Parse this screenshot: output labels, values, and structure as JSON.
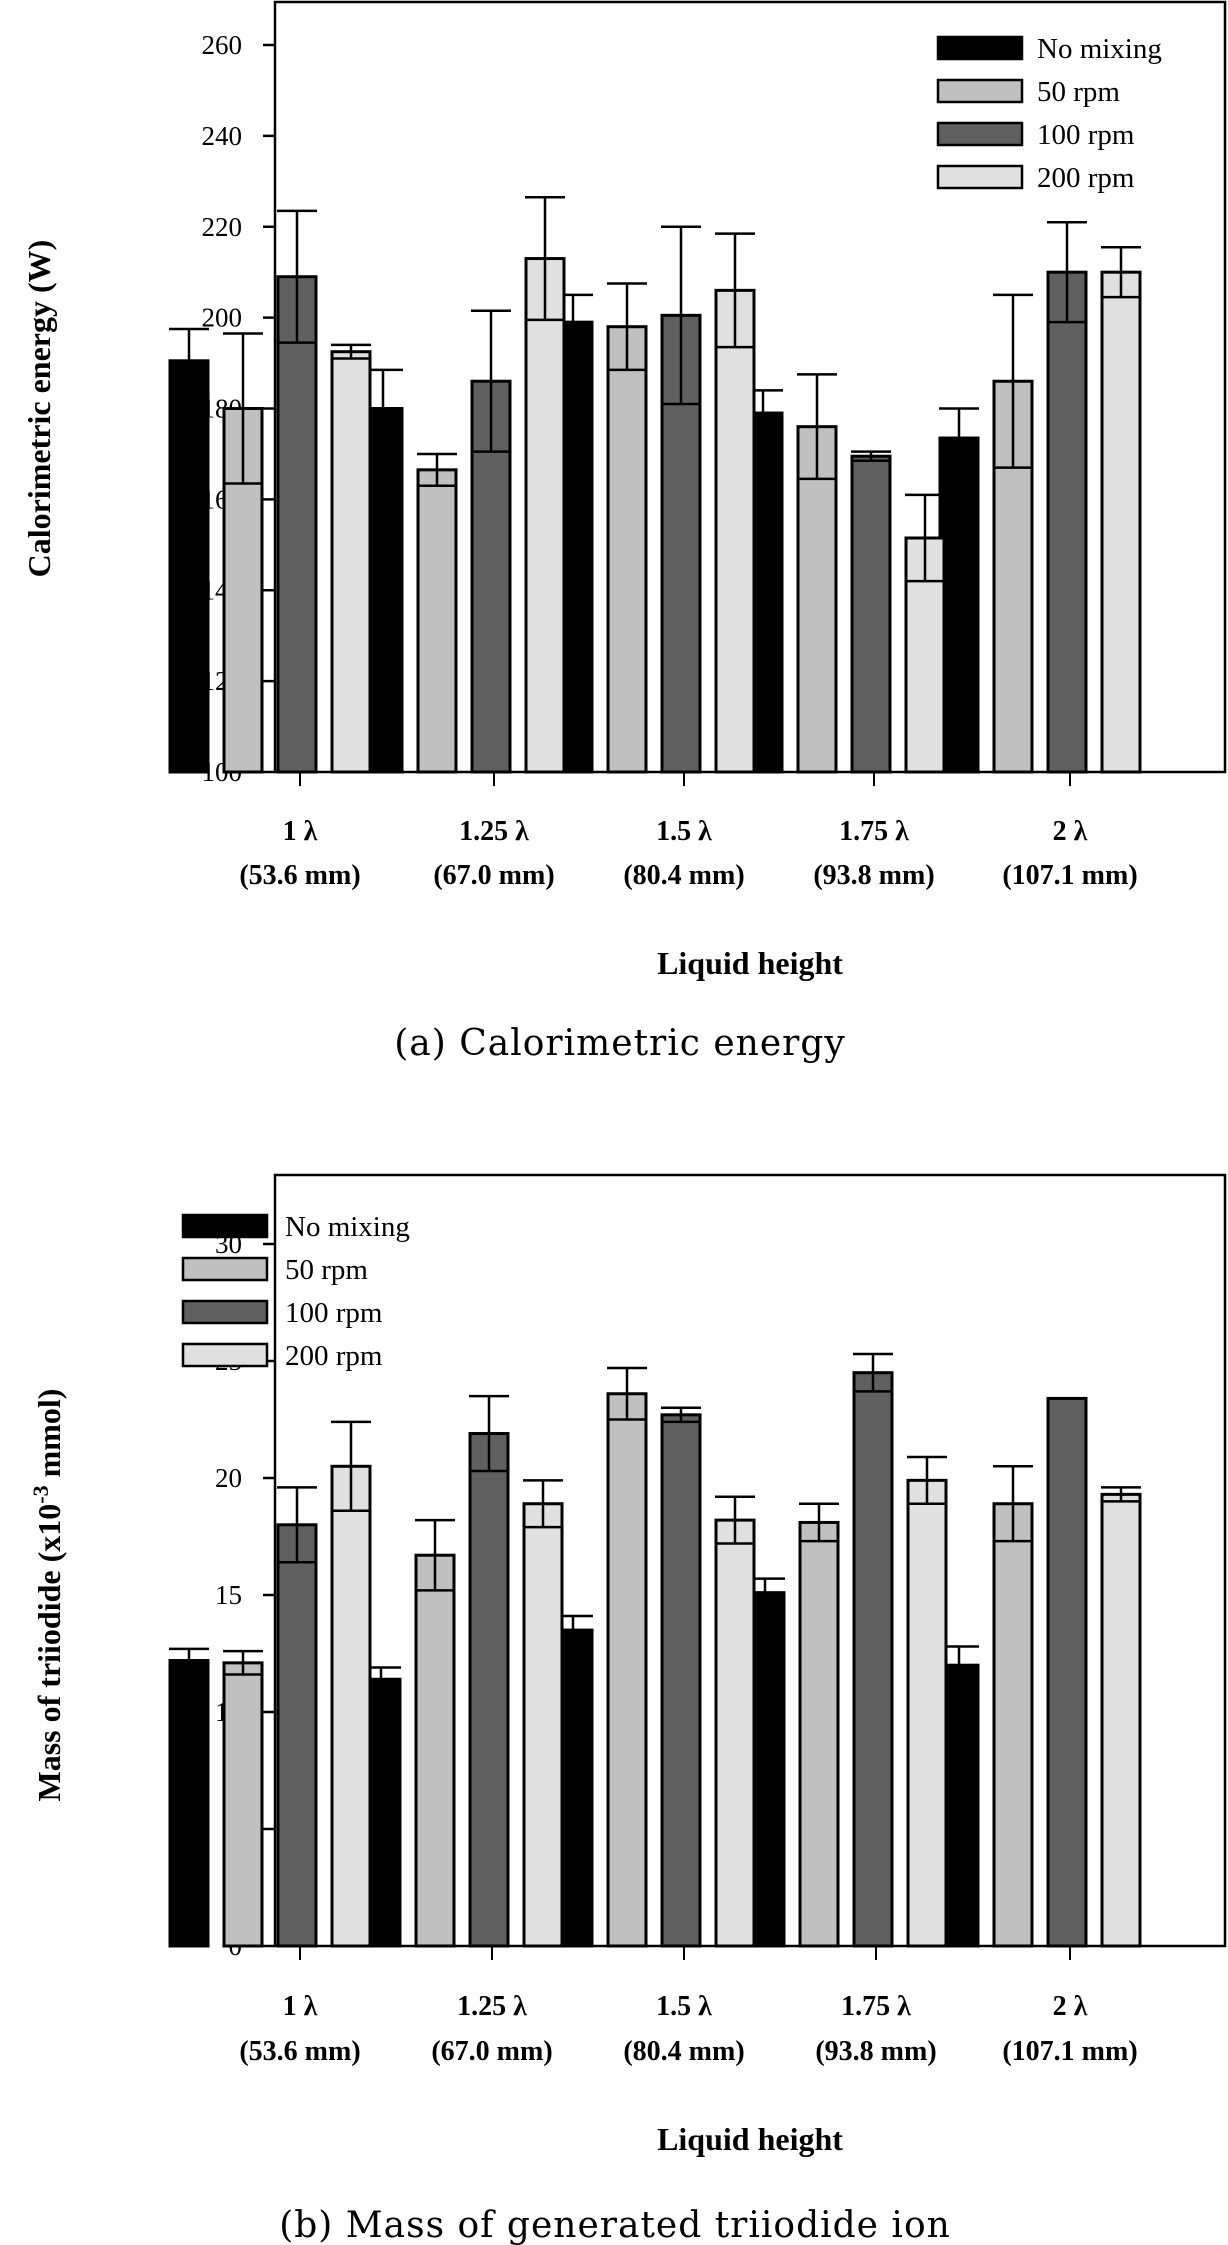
{
  "chart_data": [
    {
      "type": "bar",
      "title": "",
      "caption": "(a)  Calorimetric  energy",
      "xlabel": "Liquid height",
      "ylabel": "Calorimetric energy (W)",
      "ylim": [
        100,
        260
      ],
      "yticks": [
        100,
        120,
        140,
        160,
        180,
        200,
        220,
        240,
        260
      ],
      "grid": false,
      "legend_position": "top-right",
      "categories": [
        {
          "line1": "1 λ",
          "line2": "(53.6 mm)"
        },
        {
          "line1": "1.25 λ",
          "line2": "(67.0 mm)"
        },
        {
          "line1": "1.5 λ",
          "line2": "(80.4 mm)"
        },
        {
          "line1": "1.75 λ",
          "line2": "(93.8 mm)"
        },
        {
          "line1": "2 λ",
          "line2": "(107.1 mm)"
        }
      ],
      "series": [
        {
          "name": "No mixing",
          "color": "#000000",
          "values": [
            190.5,
            180,
            199,
            179,
            173.5
          ],
          "errors": [
            7,
            8.5,
            6,
            5,
            6.5
          ]
        },
        {
          "name": "50 rpm",
          "color": "#c0c0c0",
          "values": [
            180,
            166.5,
            198,
            176,
            186
          ],
          "errors": [
            16.5,
            3.5,
            9.5,
            11.5,
            19
          ]
        },
        {
          "name": "100 rpm",
          "color": "#606060",
          "values": [
            209,
            186,
            200.5,
            169.5,
            210
          ],
          "errors": [
            14.5,
            15.5,
            19.5,
            1,
            11
          ]
        },
        {
          "name": "200 rpm",
          "color": "#e0e0e0",
          "values": [
            192.5,
            213,
            206,
            151.5,
            210
          ],
          "errors": [
            1.5,
            13.5,
            12.5,
            9.5,
            5.5
          ]
        }
      ]
    },
    {
      "type": "bar",
      "title": "",
      "caption": "(b)  Mass  of  generated  triiodide  ion",
      "xlabel": "Liquid height",
      "ylabel": "Mass of triiodide (x10",
      "ylabel_sup": "-3",
      "ylabel_tail": " mmol)",
      "ylim": [
        0,
        33
      ],
      "yticks": [
        0,
        5,
        10,
        15,
        20,
        25,
        30
      ],
      "grid": false,
      "legend_position": "top-left",
      "categories": [
        {
          "line1": "1 λ",
          "line2": "(53.6 mm)"
        },
        {
          "line1": "1.25 λ",
          "line2": "(67.0 mm)"
        },
        {
          "line1": "1.5 λ",
          "line2": "(80.4 mm)"
        },
        {
          "line1": "1.75 λ",
          "line2": "(93.8 mm)"
        },
        {
          "line1": "2 λ",
          "line2": "(107.1 mm)"
        }
      ],
      "series": [
        {
          "name": "No mixing",
          "color": "#000000",
          "values": [
            12.2,
            11.4,
            13.5,
            15.1,
            12.0
          ],
          "errors": [
            0.5,
            0.5,
            0.6,
            0.6,
            0.8
          ]
        },
        {
          "name": "50 rpm",
          "color": "#c0c0c0",
          "values": [
            12.1,
            16.7,
            23.6,
            18.1,
            18.9
          ],
          "errors": [
            0.5,
            1.5,
            1.1,
            0.8,
            1.6
          ]
        },
        {
          "name": "100 rpm",
          "color": "#606060",
          "values": [
            18.0,
            21.9,
            22.7,
            24.5,
            23.4
          ],
          "errors": [
            1.6,
            1.6,
            0.3,
            0.8,
            0
          ]
        },
        {
          "name": "200 rpm",
          "color": "#e0e0e0",
          "values": [
            20.5,
            18.9,
            18.2,
            19.9,
            19.3
          ],
          "errors": [
            1.9,
            1.0,
            1.0,
            1.0,
            0.3
          ]
        }
      ]
    }
  ]
}
